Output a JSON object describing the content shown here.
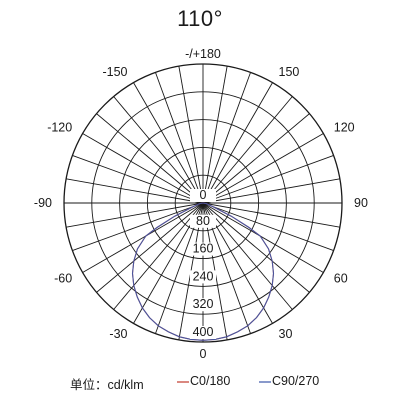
{
  "chart_data": {
    "type": "polar-line",
    "title": "110°",
    "unit_label": "单位：cd/klm",
    "angle_labels": [
      "-/+180",
      "150",
      "120",
      "90",
      "60",
      "30",
      "0",
      "-30",
      "-60",
      "-90",
      "-120",
      "-150"
    ],
    "angle_values": [
      180,
      150,
      120,
      90,
      60,
      30,
      0,
      -30,
      -60,
      -90,
      -120,
      -150
    ],
    "radial_ticks": [
      0,
      80,
      160,
      240,
      320,
      400
    ],
    "radial_max": 400,
    "spoke_step_deg": 10,
    "series": [
      {
        "name": "C0/180",
        "color": "#c0392b",
        "angles": [
          0,
          5,
          10,
          15,
          20,
          25,
          30,
          35,
          40,
          45,
          50,
          55,
          60,
          62,
          65,
          70,
          80,
          90
        ],
        "values": [
          395,
          394,
          391,
          384,
          376,
          364,
          349,
          330,
          310,
          287,
          260,
          230,
          190,
          150,
          90,
          30,
          10,
          0
        ]
      },
      {
        "name": "C90/270",
        "color": "#3a55a8",
        "angles": [
          0,
          5,
          10,
          15,
          20,
          25,
          30,
          35,
          40,
          45,
          50,
          55,
          60,
          62,
          65,
          70,
          80,
          90
        ],
        "values": [
          395,
          394,
          391,
          384,
          376,
          364,
          349,
          330,
          310,
          287,
          260,
          230,
          190,
          150,
          90,
          30,
          10,
          0
        ]
      }
    ]
  }
}
